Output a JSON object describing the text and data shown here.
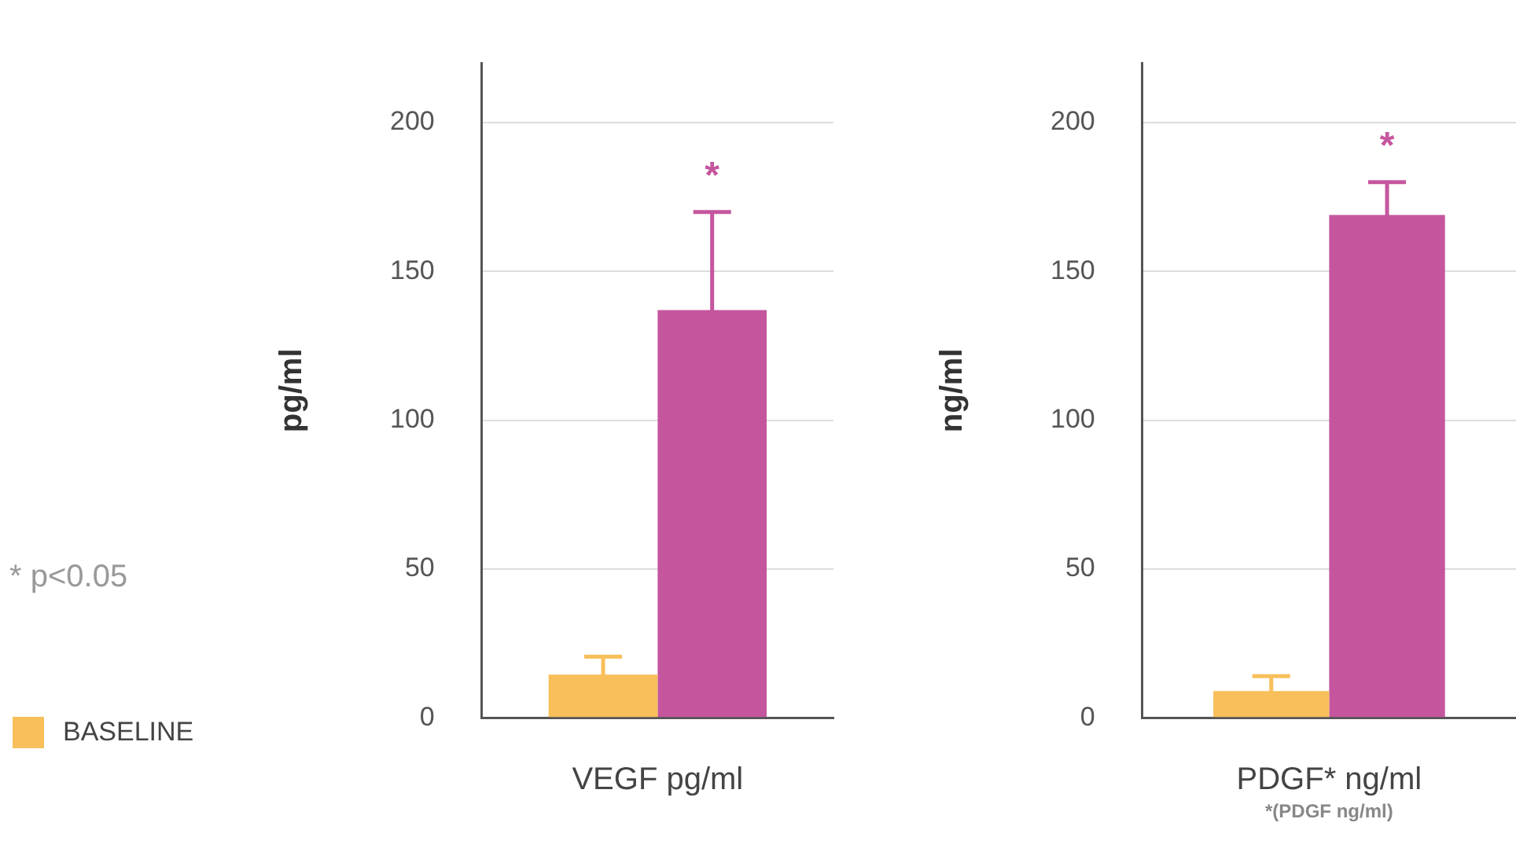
{
  "chart_data": [
    {
      "type": "bar",
      "categories": [
        null
      ],
      "xlabel": "VEGF pg/ml",
      "ylabel": "pg/ml",
      "ylim": [
        0,
        220
      ],
      "yticks": [
        0,
        50,
        100,
        150,
        200
      ],
      "grid": "y",
      "legend": "left",
      "series": [
        {
          "name": "BASELINE",
          "color": "#f8bf5a",
          "values": [
            14.5
          ],
          "errors": [
            6
          ]
        },
        {
          "color": "#c5569e",
          "values": [
            137
          ],
          "errors": [
            33
          ]
        }
      ],
      "annotations": [
        "*",
        "* p<0.05"
      ]
    },
    {
      "type": "bar",
      "categories": [
        null
      ],
      "xlabel": "PDGF* ng/ml",
      "ylabel": "ng/ml",
      "ylim": [
        0,
        220
      ],
      "yticks": [
        0,
        50,
        100,
        150,
        200
      ],
      "grid": "y",
      "series": [
        {
          "color": "#f8bf5a",
          "values": [
            9
          ],
          "errors": [
            5
          ]
        },
        {
          "color": "#c5569e",
          "values": [
            169
          ],
          "errors": [
            11
          ]
        }
      ],
      "annotations": [
        "*",
        "*(PDGF ng/ml)"
      ]
    }
  ]
}
